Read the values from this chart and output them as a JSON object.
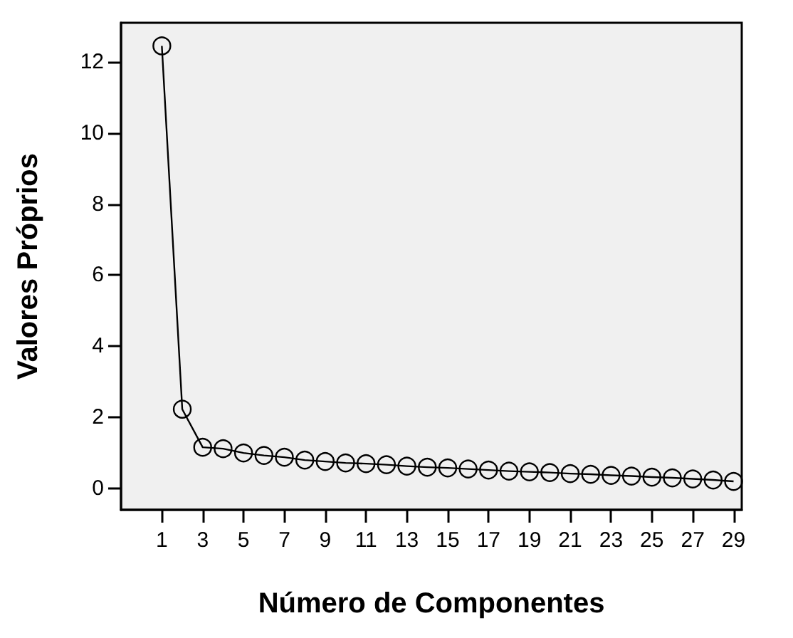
{
  "chart_data": {
    "type": "line",
    "xlabel": "Número de Componentes",
    "ylabel": "Valores Próprios",
    "x": [
      1,
      2,
      3,
      4,
      5,
      6,
      7,
      8,
      9,
      10,
      11,
      12,
      13,
      14,
      15,
      16,
      17,
      18,
      19,
      20,
      21,
      22,
      23,
      24,
      25,
      26,
      27,
      28,
      29
    ],
    "series": [
      {
        "color": "#000000",
        "values": [
          12.45,
          2.23,
          1.16,
          1.12,
          1.0,
          0.93,
          0.88,
          0.8,
          0.76,
          0.72,
          0.7,
          0.67,
          0.63,
          0.6,
          0.58,
          0.55,
          0.52,
          0.49,
          0.47,
          0.45,
          0.42,
          0.4,
          0.37,
          0.35,
          0.32,
          0.3,
          0.27,
          0.24,
          0.2
        ]
      }
    ],
    "xlim": [
      -1,
      29.4
    ],
    "xticks": [
      1,
      3,
      5,
      7,
      9,
      11,
      13,
      15,
      17,
      19,
      21,
      23,
      25,
      27,
      29
    ],
    "ylim": [
      -0.6,
      13.1
    ],
    "yticks": [
      0,
      2,
      4,
      6,
      8,
      10,
      12
    ],
    "marker": "circle",
    "line_style": "solid"
  }
}
